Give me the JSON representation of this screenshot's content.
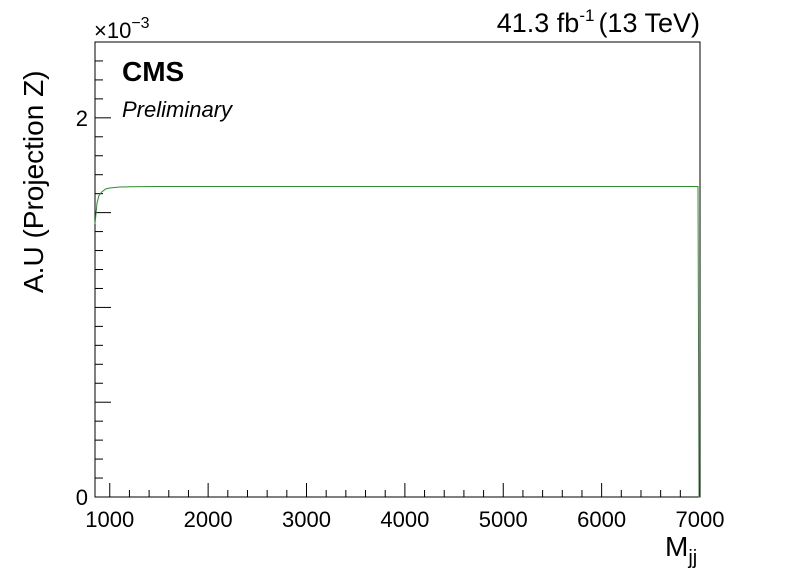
{
  "chart_data": {
    "type": "line",
    "experiment": "CMS",
    "status": "Preliminary",
    "lumi_prefix": "41.3 fb",
    "lumi_exp": "-1",
    "lumi_suffix": "(13 TeV)",
    "ylabel": "A.U (Projection Z)",
    "xlabel_main": "M",
    "xlabel_sub": "jj",
    "y_multiplier_base": "×10",
    "y_multiplier_exp": "−3",
    "xlim": [
      850,
      7000
    ],
    "ylim": [
      0,
      2.4
    ],
    "xticks": [
      1000,
      2000,
      3000,
      4000,
      5000,
      6000,
      7000
    ],
    "xtick_labels": [
      "1000",
      "2000",
      "3000",
      "4000",
      "5000",
      "6000",
      "7000"
    ],
    "yticks_labeled": [
      0,
      2
    ],
    "ytick_labels": [
      "0",
      "2"
    ],
    "line_color": "#2e8b2e",
    "series": [
      {
        "x": [
          850,
          870,
          890,
          920,
          960,
          1000,
          1100,
          1200,
          1500,
          2000,
          3000,
          4000,
          5000,
          6000,
          6980,
          6990,
          7000
        ],
        "values": [
          1.44,
          1.55,
          1.59,
          1.61,
          1.625,
          1.63,
          1.635,
          1.636,
          1.638,
          1.638,
          1.638,
          1.638,
          1.638,
          1.638,
          1.638,
          0.0,
          0.0
        ]
      }
    ]
  }
}
